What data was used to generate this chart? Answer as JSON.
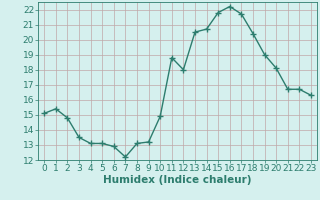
{
  "x": [
    0,
    1,
    2,
    3,
    4,
    5,
    6,
    7,
    8,
    9,
    10,
    11,
    12,
    13,
    14,
    15,
    16,
    17,
    18,
    19,
    20,
    21,
    22,
    23
  ],
  "y": [
    15.1,
    15.4,
    14.8,
    13.5,
    13.1,
    13.1,
    12.9,
    12.2,
    13.1,
    13.2,
    14.9,
    18.8,
    18.0,
    20.5,
    20.7,
    21.8,
    22.2,
    21.7,
    20.4,
    19.0,
    18.1,
    16.7,
    16.7,
    16.3
  ],
  "line_color": "#2d7d6e",
  "marker": "+",
  "marker_size": 4,
  "bg_color": "#d5f0ee",
  "grid_color": "#c0a8a8",
  "xlabel": "Humidex (Indice chaleur)",
  "xlim": [
    -0.5,
    23.5
  ],
  "ylim": [
    12,
    22.5
  ],
  "yticks": [
    12,
    13,
    14,
    15,
    16,
    17,
    18,
    19,
    20,
    21,
    22
  ],
  "xticks": [
    0,
    1,
    2,
    3,
    4,
    5,
    6,
    7,
    8,
    9,
    10,
    11,
    12,
    13,
    14,
    15,
    16,
    17,
    18,
    19,
    20,
    21,
    22,
    23
  ],
  "xlabel_fontsize": 7.5,
  "tick_fontsize": 6.5,
  "linewidth": 1.0
}
